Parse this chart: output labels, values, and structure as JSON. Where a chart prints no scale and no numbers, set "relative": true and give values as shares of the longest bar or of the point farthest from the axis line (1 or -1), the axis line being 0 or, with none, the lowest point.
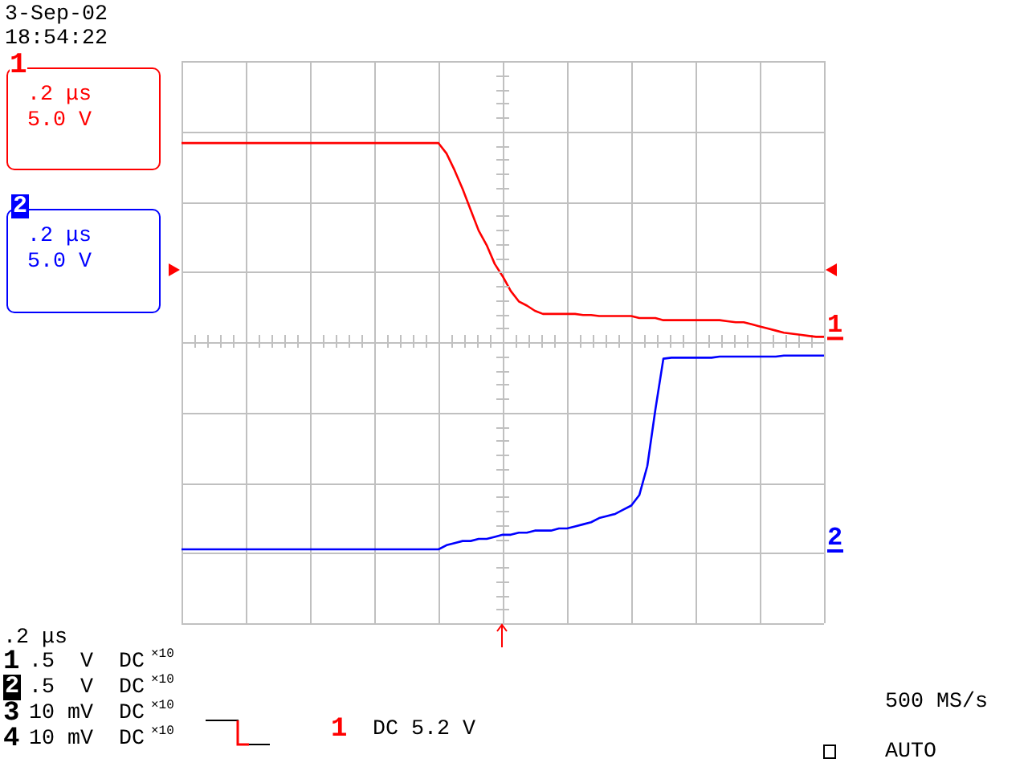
{
  "chart_data": {
    "type": "line",
    "relative": true,
    "grid": true,
    "marker": "none",
    "categories": [
      null,
      null,
      null,
      null,
      null,
      null,
      null,
      null,
      null,
      null,
      null,
      null,
      null,
      null,
      null,
      null,
      null,
      null,
      null,
      null,
      null,
      null,
      null,
      null,
      null,
      null,
      null,
      null,
      null,
      null,
      null,
      null,
      null,
      null,
      null,
      null,
      null,
      null,
      null,
      null,
      null,
      null,
      null,
      null,
      null,
      null,
      null,
      null,
      null,
      null,
      null,
      null,
      null,
      null,
      null,
      null,
      null,
      null,
      null,
      null,
      null,
      null,
      null,
      null,
      null,
      null,
      null,
      null,
      null,
      null,
      null,
      null,
      null,
      null,
      null,
      null,
      null,
      null,
      null,
      null,
      null
    ],
    "series": [
      {
        "name": "1",
        "color": "#ff0000",
        "values": [
          0.95,
          0.95,
          0.95,
          0.95,
          0.95,
          0.95,
          0.95,
          0.95,
          0.95,
          0.95,
          0.95,
          0.95,
          0.95,
          0.95,
          0.95,
          0.95,
          0.95,
          0.95,
          0.95,
          0.95,
          0.95,
          0.95,
          0.95,
          0.95,
          0.95,
          0.95,
          0.95,
          0.95,
          0.95,
          0.95,
          0.95,
          0.95,
          0.95,
          0.9,
          0.82,
          0.73,
          0.63,
          0.53,
          0.46,
          0.37,
          0.31,
          0.24,
          0.19,
          0.17,
          0.145,
          0.13,
          0.13,
          0.13,
          0.13,
          0.13,
          0.125,
          0.125,
          0.12,
          0.12,
          0.12,
          0.12,
          0.12,
          0.11,
          0.11,
          0.11,
          0.1,
          0.1,
          0.1,
          0.1,
          0.1,
          0.1,
          0.1,
          0.1,
          0.095,
          0.09,
          0.09,
          0.08,
          0.07,
          0.06,
          0.05,
          0.04,
          0.035,
          0.03,
          0.025,
          0.02,
          0.02
        ]
      },
      {
        "name": "2",
        "color": "#0000ff",
        "values": [
          -1,
          -1,
          -1,
          -1,
          -1,
          -1,
          -1,
          -1,
          -1,
          -1,
          -1,
          -1,
          -1,
          -1,
          -1,
          -1,
          -1,
          -1,
          -1,
          -1,
          -1,
          -1,
          -1,
          -1,
          -1,
          -1,
          -1,
          -1,
          -1,
          -1,
          -1,
          -1,
          -1,
          -0.98,
          -0.97,
          -0.96,
          -0.96,
          -0.95,
          -0.95,
          -0.94,
          -0.93,
          -0.93,
          -0.92,
          -0.92,
          -0.91,
          -0.91,
          -0.91,
          -0.9,
          -0.9,
          -0.89,
          -0.88,
          -0.87,
          -0.85,
          -0.84,
          -0.83,
          -0.81,
          -0.79,
          -0.74,
          -0.6,
          -0.33,
          -0.085,
          -0.08,
          -0.08,
          -0.08,
          -0.08,
          -0.08,
          -0.08,
          -0.075,
          -0.075,
          -0.075,
          -0.075,
          -0.075,
          -0.075,
          -0.075,
          -0.075,
          -0.07,
          -0.07,
          -0.07,
          -0.07,
          -0.07,
          -0.07
        ]
      }
    ],
    "annotations": [
      "3-Sep-02",
      "18:54:22",
      "1",
      ".2 μs",
      "5.0 V",
      "2",
      ".2 μs",
      "5.0 V",
      ".2 μs",
      "1",
      ".5  V  DC",
      "×10",
      "2",
      ".5  V  DC",
      "×10",
      "3",
      "10 mV  DC",
      "×10",
      "4",
      "10 mV  DC",
      "×10",
      "1",
      "DC 5.2 V",
      "500 MS/s",
      "AUTO"
    ]
  }
}
